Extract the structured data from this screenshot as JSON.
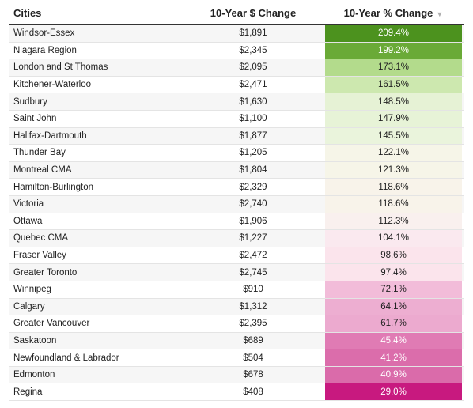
{
  "chart_data": {
    "type": "table",
    "columns": [
      "Cities",
      "10-Year $ Change",
      "10-Year % Change"
    ],
    "sort_indicator": "▼",
    "rows": [
      {
        "city": "Windsor-Essex",
        "dollar": "$1,891",
        "pct": "209.4%",
        "pct_value": 209.4,
        "color": "#4c921e",
        "text_color": "#ffffff"
      },
      {
        "city": "Niagara Region",
        "dollar": "$2,345",
        "pct": "199.2%",
        "pct_value": 199.2,
        "color": "#6aaa37",
        "text_color": "#ffffff"
      },
      {
        "city": "London and St Thomas",
        "dollar": "$2,095",
        "pct": "173.1%",
        "pct_value": 173.1,
        "color": "#b3db8c",
        "text_color": "#222222"
      },
      {
        "city": "Kitchener-Waterloo",
        "dollar": "$2,471",
        "pct": "161.5%",
        "pct_value": 161.5,
        "color": "#cde8af",
        "text_color": "#222222"
      },
      {
        "city": "Sudbury",
        "dollar": "$1,630",
        "pct": "148.5%",
        "pct_value": 148.5,
        "color": "#e6f2d5",
        "text_color": "#222222"
      },
      {
        "city": "Saint John",
        "dollar": "$1,100",
        "pct": "147.9%",
        "pct_value": 147.9,
        "color": "#e7f3d7",
        "text_color": "#222222"
      },
      {
        "city": "Halifax-Dartmouth",
        "dollar": "$1,877",
        "pct": "145.5%",
        "pct_value": 145.5,
        "color": "#eaf4dc",
        "text_color": "#222222"
      },
      {
        "city": "Thunder Bay",
        "dollar": "$1,205",
        "pct": "122.1%",
        "pct_value": 122.1,
        "color": "#f6f5e8",
        "text_color": "#222222"
      },
      {
        "city": "Montreal CMA",
        "dollar": "$1,804",
        "pct": "121.3%",
        "pct_value": 121.3,
        "color": "#f6f5e8",
        "text_color": "#222222"
      },
      {
        "city": "Hamilton-Burlington",
        "dollar": "$2,329",
        "pct": "118.6%",
        "pct_value": 118.6,
        "color": "#f8f3ea",
        "text_color": "#222222"
      },
      {
        "city": "Victoria",
        "dollar": "$2,740",
        "pct": "118.6%",
        "pct_value": 118.6,
        "color": "#f8f3ea",
        "text_color": "#222222"
      },
      {
        "city": "Ottawa",
        "dollar": "$1,906",
        "pct": "112.3%",
        "pct_value": 112.3,
        "color": "#f9f0ee",
        "text_color": "#222222"
      },
      {
        "city": "Quebec CMA",
        "dollar": "$1,227",
        "pct": "104.1%",
        "pct_value": 104.1,
        "color": "#fae9ef",
        "text_color": "#222222"
      },
      {
        "city": "Fraser Valley",
        "dollar": "$2,472",
        "pct": "98.6%",
        "pct_value": 98.6,
        "color": "#fbe4ec",
        "text_color": "#222222"
      },
      {
        "city": "Greater Toronto",
        "dollar": "$2,745",
        "pct": "97.4%",
        "pct_value": 97.4,
        "color": "#fbe4ec",
        "text_color": "#222222"
      },
      {
        "city": "Winnipeg",
        "dollar": "$910",
        "pct": "72.1%",
        "pct_value": 72.1,
        "color": "#f2bcd9",
        "text_color": "#222222"
      },
      {
        "city": "Calgary",
        "dollar": "$1,312",
        "pct": "64.1%",
        "pct_value": 64.1,
        "color": "#edaed1",
        "text_color": "#222222"
      },
      {
        "city": "Greater Vancouver",
        "dollar": "$2,395",
        "pct": "61.7%",
        "pct_value": 61.7,
        "color": "#ecaacf",
        "text_color": "#222222"
      },
      {
        "city": "Saskatoon",
        "dollar": "$689",
        "pct": "45.4%",
        "pct_value": 45.4,
        "color": "#e07bb4",
        "text_color": "#ffffff"
      },
      {
        "city": "Newfoundland & Labrador",
        "dollar": "$504",
        "pct": "41.2%",
        "pct_value": 41.2,
        "color": "#db6dab",
        "text_color": "#ffffff"
      },
      {
        "city": "Edmonton",
        "dollar": "$678",
        "pct": "40.9%",
        "pct_value": 40.9,
        "color": "#da6baa",
        "text_color": "#ffffff"
      },
      {
        "city": "Regina",
        "dollar": "$408",
        "pct": "29.0%",
        "pct_value": 29.0,
        "color": "#c8197f",
        "text_color": "#ffffff"
      }
    ]
  }
}
